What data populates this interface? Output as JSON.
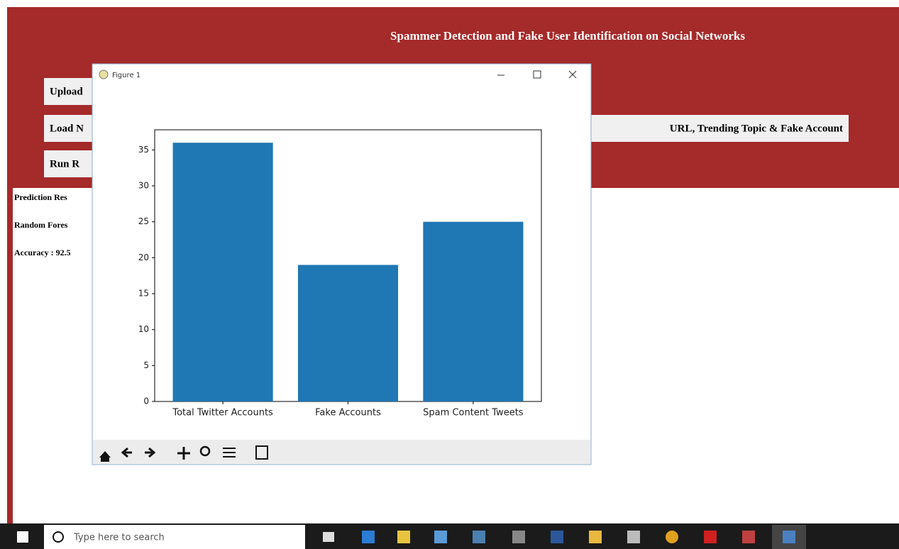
{
  "app": {
    "title": "Spammer Detection and Fake User Identification on Social Networks",
    "buttons": [
      "Upload",
      "Load N",
      "Run R",
      "URL, Trending Topic & Fake Account"
    ],
    "output": [
      "Prediction Res",
      "Random Fores",
      "Accuracy : 92.5"
    ]
  },
  "window": {
    "title": "Figure 1"
  },
  "taskbar": {
    "search": "Type here to search"
  },
  "chart_data": {
    "type": "bar",
    "categories": [
      "Total Twitter Accounts",
      "Fake Accounts",
      "Spam Content Tweets"
    ],
    "values": [
      36,
      19,
      25
    ],
    "color": "#1f77b4",
    "ylim": [
      0,
      37.8
    ],
    "yticks": [
      0,
      5,
      10,
      15,
      20,
      25,
      30,
      35
    ]
  }
}
